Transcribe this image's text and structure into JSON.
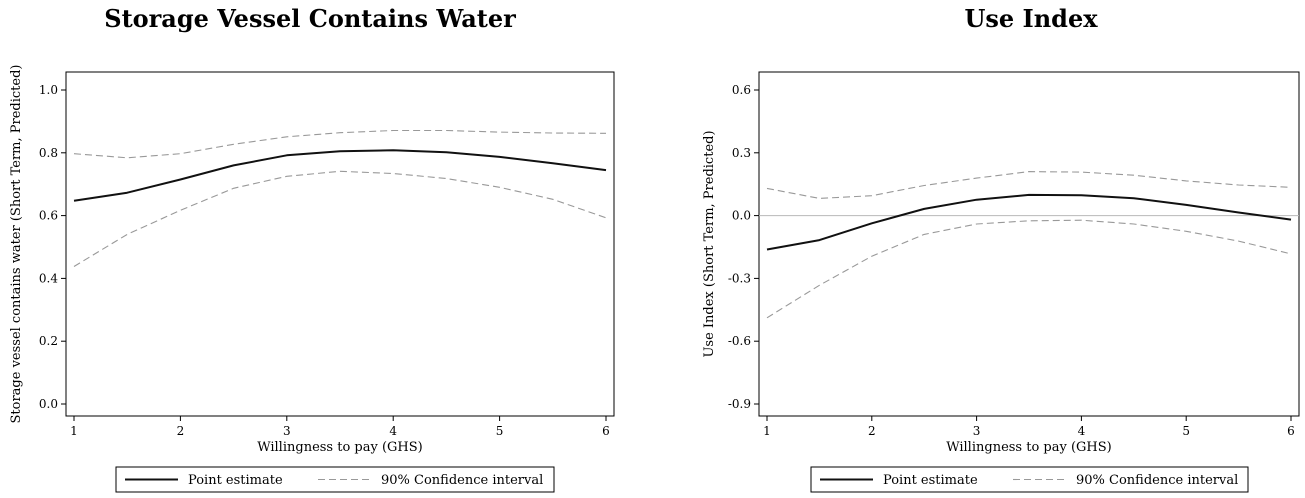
{
  "chart_data": [
    {
      "type": "line",
      "title": "Storage Vessel Contains Water",
      "xlabel": "Willingness to pay (GHS)",
      "ylabel": "Storage vessel contains water (Short Term, Predicted)",
      "xlim": [
        1,
        6
      ],
      "ylim": [
        0.0,
        1.0
      ],
      "xticks": [
        1,
        2,
        3,
        4,
        5,
        6
      ],
      "yticks": [
        "0.0",
        "0.2",
        "0.4",
        "0.6",
        "0.8",
        "1.0"
      ],
      "reference_line": null,
      "x": [
        1,
        1.5,
        2,
        2.5,
        3,
        3.5,
        4,
        4.5,
        5,
        5.5,
        6
      ],
      "series": [
        {
          "name": "Point estimate",
          "style": "solid",
          "color": "#111111",
          "values": [
            0.647,
            0.673,
            0.715,
            0.76,
            0.792,
            0.805,
            0.808,
            0.802,
            0.787,
            0.767,
            0.745
          ]
        },
        {
          "name": "90% Confidence interval",
          "style": "dashed",
          "color": "#999999",
          "values": [
            0.797,
            0.784,
            0.797,
            0.827,
            0.851,
            0.864,
            0.871,
            0.871,
            0.866,
            0.863,
            0.862
          ]
        },
        {
          "name": "",
          "style": "dashed",
          "color": "#999999",
          "values": [
            0.438,
            0.54,
            0.617,
            0.687,
            0.725,
            0.741,
            0.734,
            0.718,
            0.69,
            0.652,
            0.593
          ]
        }
      ],
      "legend": {
        "position": "bottom",
        "items": [
          {
            "label": "Point estimate",
            "style": "solid"
          },
          {
            "label": "90% Confidence interval",
            "style": "dashed"
          }
        ]
      }
    },
    {
      "type": "line",
      "title": "Use Index",
      "xlabel": "Willingness to pay (GHS)",
      "ylabel": "Use Index (Short Term, Predicted)",
      "xlim": [
        1,
        6
      ],
      "ylim": [
        -0.9,
        0.6
      ],
      "xticks": [
        1,
        2,
        3,
        4,
        5,
        6
      ],
      "yticks": [
        "-0.9",
        "-0.6",
        "-0.3",
        "0.0",
        "0.3",
        "0.6"
      ],
      "reference_line": 0.0,
      "x": [
        1,
        1.5,
        2,
        2.5,
        3,
        3.5,
        4,
        4.5,
        5,
        5.5,
        6
      ],
      "series": [
        {
          "name": "Point estimate",
          "style": "solid",
          "color": "#111111",
          "values": [
            -0.162,
            -0.117,
            -0.037,
            0.032,
            0.076,
            0.099,
            0.097,
            0.083,
            0.051,
            0.015,
            -0.019
          ]
        },
        {
          "name": "90% Confidence interval",
          "style": "dashed",
          "color": "#999999",
          "values": [
            0.13,
            0.082,
            0.095,
            0.144,
            0.179,
            0.21,
            0.208,
            0.193,
            0.166,
            0.146,
            0.135
          ]
        },
        {
          "name": "",
          "style": "dashed",
          "color": "#999999",
          "values": [
            -0.488,
            -0.333,
            -0.194,
            -0.09,
            -0.04,
            -0.025,
            -0.022,
            -0.04,
            -0.075,
            -0.122,
            -0.183
          ]
        }
      ],
      "legend": {
        "position": "bottom",
        "items": [
          {
            "label": "Point estimate",
            "style": "solid"
          },
          {
            "label": "90% Confidence interval",
            "style": "dashed"
          }
        ]
      }
    }
  ]
}
